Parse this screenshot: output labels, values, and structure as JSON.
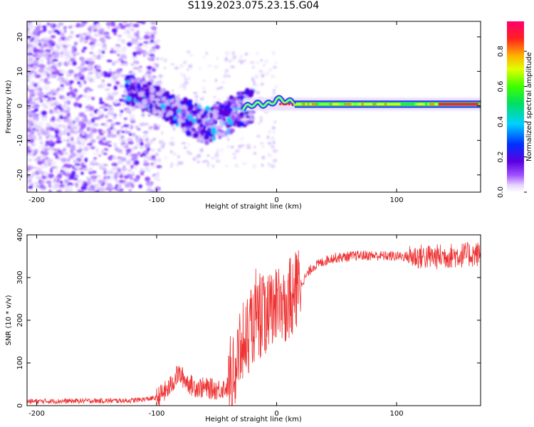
{
  "title": "S119.2023.075.23.15.G04",
  "chart_data": [
    {
      "type": "heatmap",
      "xlabel": "Height of straight line (km)",
      "ylabel": "Frequency (Hz)",
      "xlim": [
        -208,
        170
      ],
      "ylim": [
        -25,
        24.5
      ],
      "xticks": [
        -200,
        -100,
        0,
        100
      ],
      "yticks": [
        -20,
        -10,
        0,
        10,
        20
      ],
      "colorbar": {
        "label": "Normalized spectral amplitude",
        "ticks": [
          "0.0",
          "0.2",
          "0.4",
          "0.6",
          "0.8"
        ],
        "range": [
          0,
          0.97
        ],
        "colormap": "rainbow (white-violet-blue-cyan-green-yellow-red-magenta)"
      },
      "ridge": [
        {
          "x": -120,
          "y": 4.5
        },
        {
          "x": -100,
          "y": 1.5
        },
        {
          "x": -80,
          "y": -2
        },
        {
          "x": -60,
          "y": -6
        },
        {
          "x": -45,
          "y": -4
        },
        {
          "x": -30,
          "y": -1
        },
        {
          "x": -20,
          "y": 0.5
        },
        {
          "x": -5,
          "y": 0.5
        },
        {
          "x": 0,
          "y": 2
        },
        {
          "x": 20,
          "y": 0.5
        },
        {
          "x": 100,
          "y": 0.5
        },
        {
          "x": 170,
          "y": 0.5
        }
      ],
      "grid": false
    },
    {
      "type": "line",
      "xlabel": "Height of straight line (km)",
      "ylabel": "SNR (10 * v/v)",
      "xlim": [
        -208,
        170
      ],
      "ylim": [
        0,
        400
      ],
      "xticks": [
        -200,
        -100,
        0,
        100
      ],
      "yticks": [
        0,
        100,
        200,
        300,
        400
      ],
      "color": "#ee3333",
      "grid": false,
      "envelope": [
        {
          "x": -208,
          "y": 10
        },
        {
          "x": -120,
          "y": 12
        },
        {
          "x": -100,
          "y": 18
        },
        {
          "x": -90,
          "y": 40
        },
        {
          "x": -82,
          "y": 75
        },
        {
          "x": -70,
          "y": 45
        },
        {
          "x": -50,
          "y": 38
        },
        {
          "x": -38,
          "y": 45
        },
        {
          "x": -30,
          "y": 130
        },
        {
          "x": -20,
          "y": 190
        },
        {
          "x": -10,
          "y": 215
        },
        {
          "x": 0,
          "y": 225
        },
        {
          "x": 10,
          "y": 245
        },
        {
          "x": 20,
          "y": 285
        },
        {
          "x": 30,
          "y": 325
        },
        {
          "x": 45,
          "y": 345
        },
        {
          "x": 70,
          "y": 352
        },
        {
          "x": 100,
          "y": 350
        },
        {
          "x": 130,
          "y": 348
        },
        {
          "x": 150,
          "y": 352
        },
        {
          "x": 170,
          "y": 355
        }
      ]
    }
  ]
}
